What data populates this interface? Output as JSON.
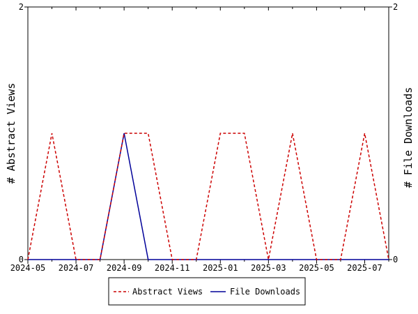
{
  "chart_data": {
    "type": "line",
    "x": [
      "2024-05",
      "2024-06",
      "2024-07",
      "2024-08",
      "2024-09",
      "2024-10",
      "2024-11",
      "2024-12",
      "2025-01",
      "2025-02",
      "2025-03",
      "2025-04",
      "2025-05",
      "2025-06",
      "2025-07",
      "2025-08"
    ],
    "x_tick_labels": [
      "2024-05",
      "2024-07",
      "2024-09",
      "2024-11",
      "2025-01",
      "2025-03",
      "2025-05",
      "2025-07"
    ],
    "series": [
      {
        "name": "Abstract Views",
        "color": "#cc0000",
        "style": "dashed",
        "values": [
          0,
          1,
          0,
          0,
          1,
          1,
          0,
          0,
          1,
          1,
          0,
          1,
          0,
          0,
          1,
          0
        ]
      },
      {
        "name": "File Downloads",
        "color": "#000099",
        "style": "solid",
        "values": [
          0,
          0,
          0,
          0,
          1,
          0,
          0,
          0,
          0,
          0,
          0,
          0,
          0,
          0,
          0,
          0
        ]
      }
    ],
    "ylabel_left": "# Abstract Views",
    "ylabel_right": "# File Downloads",
    "yticks_left": [
      "0",
      "2"
    ],
    "yticks_right": [
      "0",
      "2"
    ],
    "ylim": [
      0,
      2
    ],
    "grid": false,
    "legend_position": "bottom"
  }
}
